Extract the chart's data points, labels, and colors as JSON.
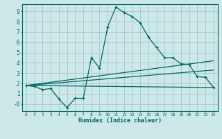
{
  "xlabel": "Humidex (Indice chaleur)",
  "bg_color": "#cce8e8",
  "grid_color": "#aacccc",
  "line_color": "#006666",
  "xlim": [
    -0.5,
    23.5
  ],
  "ylim": [
    -0.7,
    9.7
  ],
  "xticks": [
    0,
    1,
    2,
    3,
    4,
    5,
    6,
    7,
    8,
    9,
    10,
    11,
    12,
    13,
    14,
    15,
    16,
    17,
    18,
    19,
    20,
    21,
    22,
    23
  ],
  "yticks": [
    0,
    1,
    2,
    3,
    4,
    5,
    6,
    7,
    8,
    9
  ],
  "ytick_labels": [
    "-0",
    "1",
    "2",
    "3",
    "4",
    "5",
    "6",
    "7",
    "8",
    "9"
  ],
  "curve1_x": [
    0,
    1,
    2,
    3,
    4,
    5,
    6,
    7,
    8,
    9,
    10,
    11,
    12,
    13,
    14,
    15,
    16,
    17,
    18,
    19,
    20,
    21,
    22,
    23
  ],
  "curve1_y": [
    1.8,
    1.7,
    1.4,
    1.5,
    0.5,
    -0.35,
    0.55,
    0.55,
    4.5,
    3.5,
    7.5,
    9.4,
    8.9,
    8.5,
    7.9,
    6.5,
    5.5,
    4.5,
    4.5,
    3.9,
    3.85,
    2.65,
    2.6,
    1.6
  ],
  "line2_x": [
    0,
    23
  ],
  "line2_y": [
    1.8,
    1.6
  ],
  "line3_x": [
    0,
    23
  ],
  "line3_y": [
    1.8,
    3.3
  ],
  "line4_x": [
    0,
    23
  ],
  "line4_y": [
    1.8,
    4.2
  ]
}
